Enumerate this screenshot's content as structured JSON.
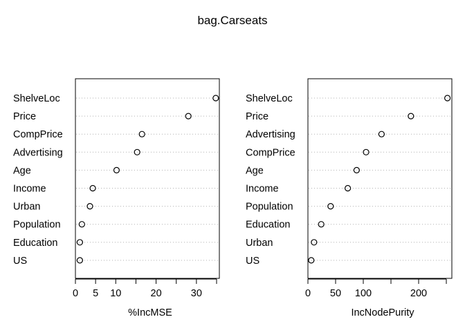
{
  "title": "bag.Carseats",
  "chart_data": [
    {
      "type": "scatter",
      "subtype": "dotchart",
      "xlabel": "%IncMSE",
      "xlim": [
        0,
        36
      ],
      "xticks": [
        0,
        5,
        10,
        20,
        30
      ],
      "xtick_marks": [
        0,
        5,
        10,
        15,
        20,
        25,
        30,
        35
      ],
      "grid": "dotted horizontal guide lines",
      "categories": [
        "ShelveLoc",
        "Price",
        "CompPrice",
        "Advertising",
        "Age",
        "Income",
        "Urban",
        "Population",
        "Education",
        "US"
      ],
      "values": [
        34.8,
        28.0,
        16.5,
        15.3,
        10.2,
        4.3,
        3.6,
        1.6,
        1.1,
        1.1
      ]
    },
    {
      "type": "scatter",
      "subtype": "dotchart",
      "xlabel": "IncNodePurity",
      "xlim": [
        0,
        255
      ],
      "xticks": [
        0,
        50,
        100,
        200
      ],
      "xtick_marks": [
        0,
        50,
        100,
        150,
        200,
        250
      ],
      "grid": "dotted horizontal guide lines",
      "categories": [
        "ShelveLoc",
        "Price",
        "Advertising",
        "CompPrice",
        "Age",
        "Income",
        "Population",
        "Education",
        "Urban",
        "US"
      ],
      "values": [
        252,
        186,
        133,
        105,
        88,
        72,
        41,
        24,
        11,
        6
      ]
    }
  ]
}
